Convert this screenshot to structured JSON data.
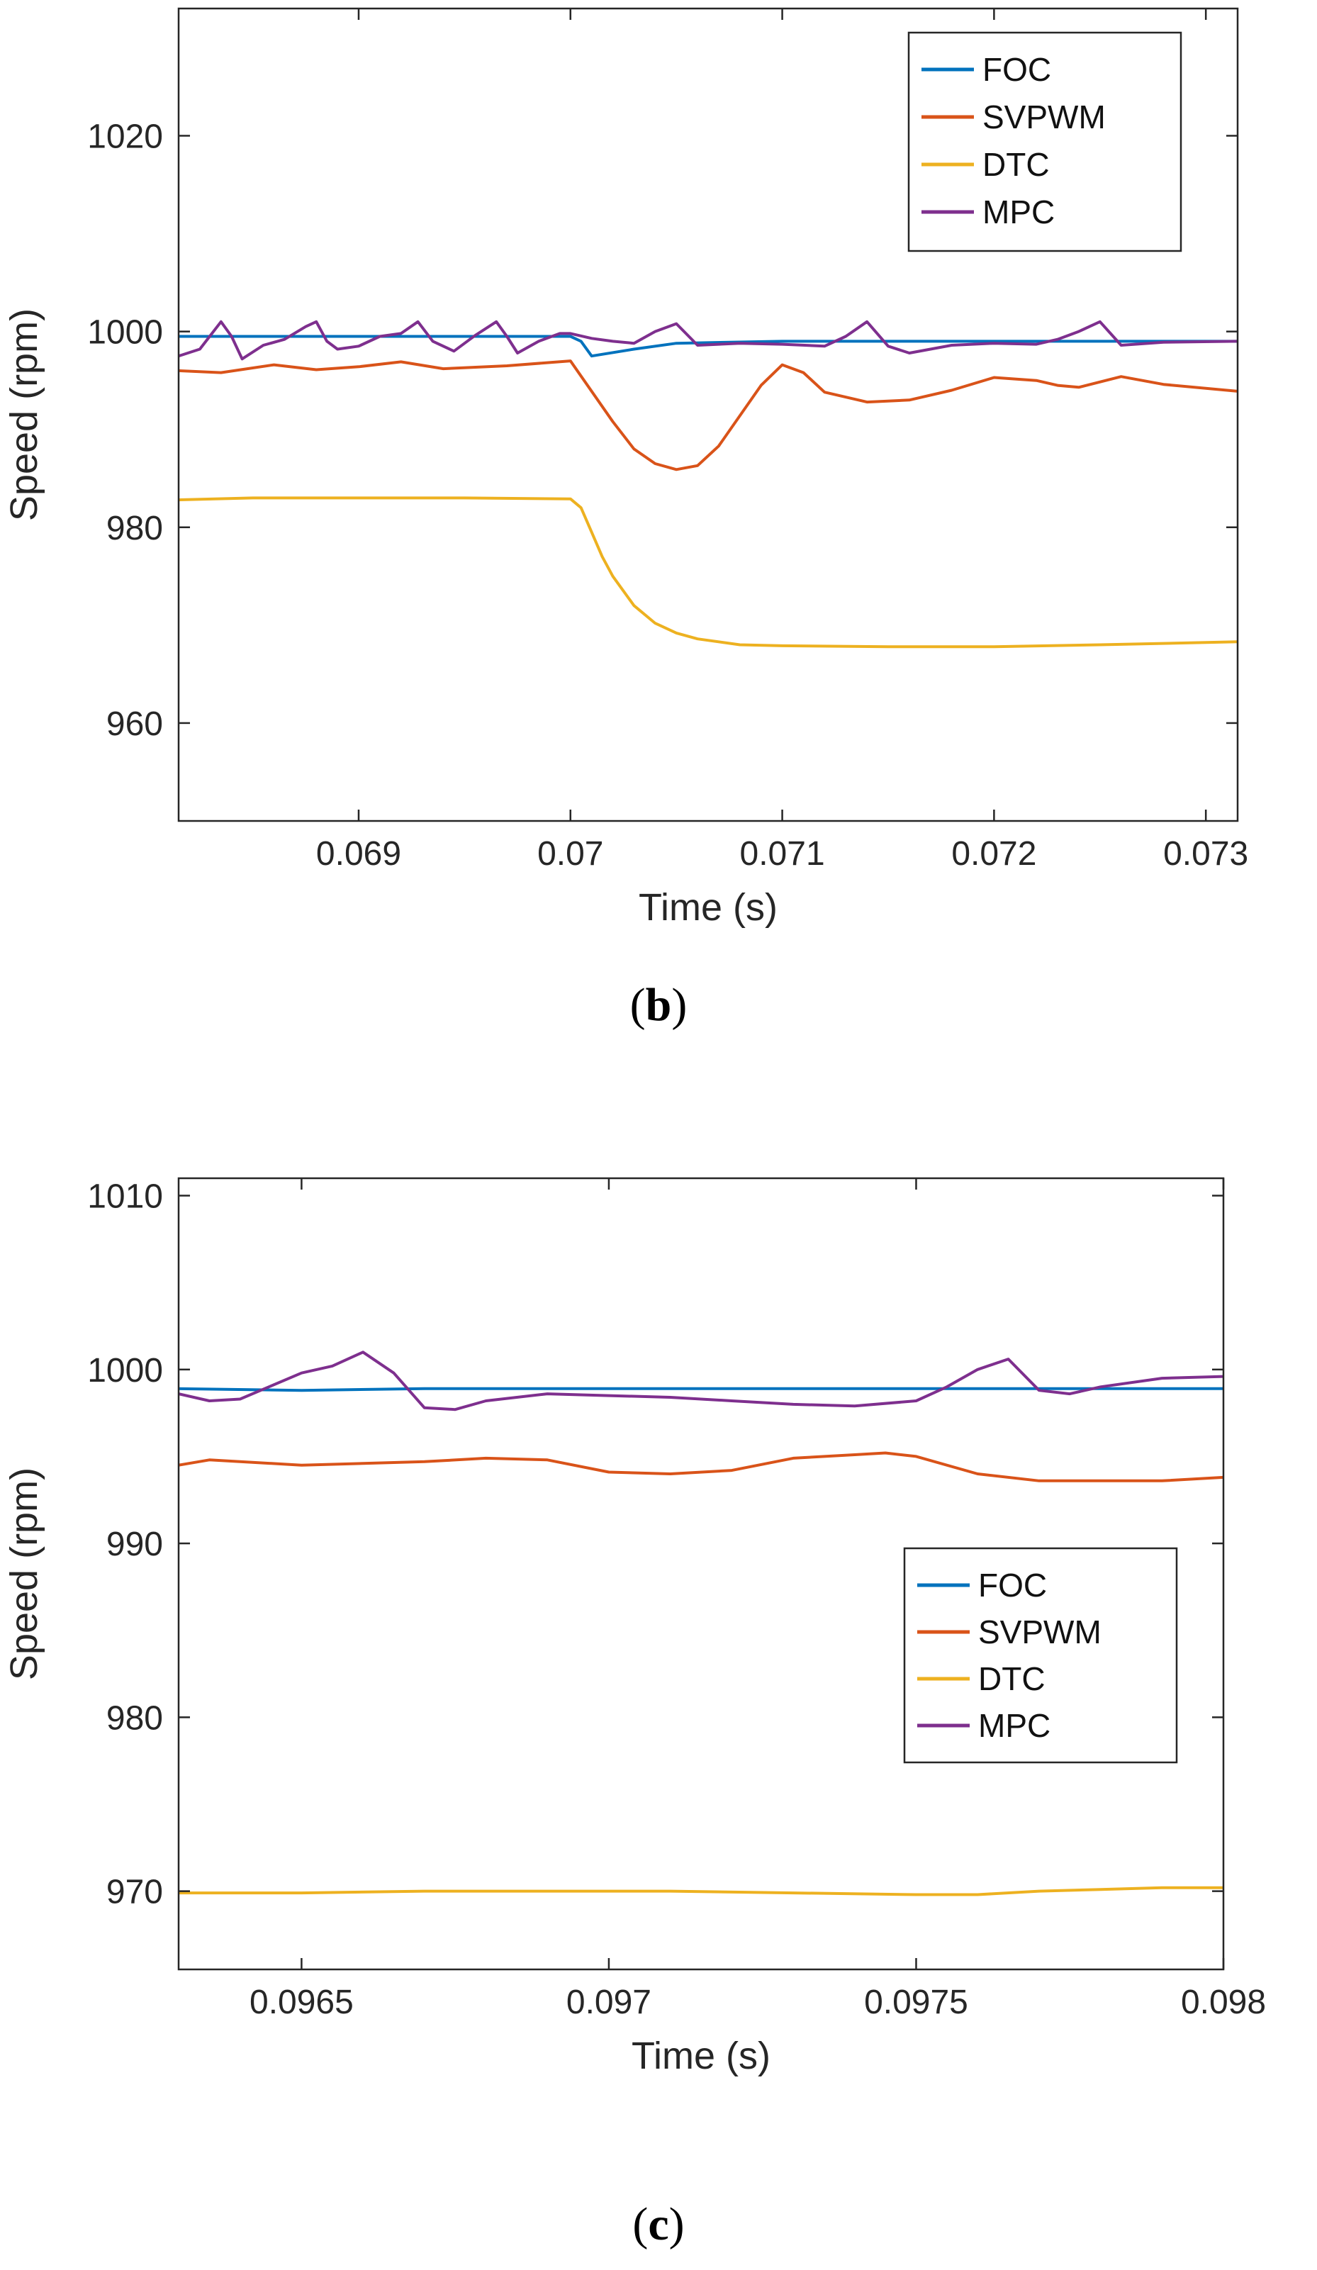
{
  "chart_data": [
    {
      "type": "line",
      "caption": "b",
      "xlabel": "Time (s)",
      "ylabel": "Speed (rpm)",
      "xlim": [
        0.06815,
        0.07315
      ],
      "ylim": [
        950,
        1033
      ],
      "xticks": [
        0.069,
        0.07,
        0.071,
        0.072,
        0.073
      ],
      "xtick_labels": [
        "0.069",
        "0.07",
        "0.071",
        "0.072",
        "0.073"
      ],
      "yticks": [
        960,
        980,
        1000,
        1020
      ],
      "ytick_labels": [
        "960",
        "980",
        "1000",
        "1020"
      ],
      "legend_position": "top-right",
      "series": [
        {
          "name": "FOC",
          "color": "#0072BD",
          "x": [
            0.06815,
            0.0685,
            0.069,
            0.0695,
            0.06995,
            0.07,
            0.07005,
            0.0701,
            0.0703,
            0.0705,
            0.071,
            0.0715,
            0.072,
            0.0725,
            0.07315
          ],
          "y": [
            999.5,
            999.5,
            999.5,
            999.5,
            999.5,
            999.5,
            999.0,
            997.5,
            998.2,
            998.8,
            999.0,
            999.0,
            999.0,
            999.0,
            999.0
          ]
        },
        {
          "name": "SVPWM",
          "color": "#D95319",
          "x": [
            0.06815,
            0.06835,
            0.0686,
            0.0688,
            0.069,
            0.0692,
            0.0694,
            0.0697,
            0.07,
            0.0702,
            0.0703,
            0.0704,
            0.0705,
            0.0706,
            0.0707,
            0.0709,
            0.071,
            0.0711,
            0.0712,
            0.0714,
            0.0716,
            0.0718,
            0.072,
            0.0722,
            0.0723,
            0.0724,
            0.0726,
            0.0728,
            0.07315
          ],
          "y": [
            996.0,
            995.8,
            996.6,
            996.1,
            996.4,
            996.9,
            996.2,
            996.5,
            997.0,
            990.8,
            988.0,
            986.5,
            985.9,
            986.3,
            988.3,
            994.5,
            996.6,
            995.8,
            993.8,
            992.8,
            993.0,
            994.0,
            995.3,
            995.0,
            994.5,
            994.3,
            995.4,
            994.6,
            993.9
          ]
        },
        {
          "name": "DTC",
          "color": "#EDB120",
          "x": [
            0.06815,
            0.0685,
            0.069,
            0.0695,
            0.07,
            0.07005,
            0.0701,
            0.07015,
            0.0702,
            0.0703,
            0.0704,
            0.0705,
            0.0706,
            0.0708,
            0.071,
            0.0715,
            0.072,
            0.0725,
            0.07315
          ],
          "y": [
            982.8,
            983.0,
            983.0,
            983.0,
            982.9,
            982.0,
            979.5,
            977.0,
            975.0,
            972.0,
            970.2,
            969.2,
            968.6,
            968.0,
            967.9,
            967.8,
            967.8,
            968.0,
            968.3
          ]
        },
        {
          "name": "MPC",
          "color": "#7E2F8E",
          "x": [
            0.06815,
            0.06825,
            0.06835,
            0.0684,
            0.06845,
            0.06855,
            0.06865,
            0.06875,
            0.0688,
            0.06885,
            0.0689,
            0.069,
            0.0691,
            0.0692,
            0.06928,
            0.06935,
            0.06945,
            0.06955,
            0.06965,
            0.0697,
            0.06975,
            0.06985,
            0.06995,
            0.07,
            0.0701,
            0.0702,
            0.0703,
            0.0704,
            0.0705,
            0.0706,
            0.0708,
            0.071,
            0.0712,
            0.0713,
            0.0714,
            0.0715,
            0.0716,
            0.0718,
            0.072,
            0.0722,
            0.0723,
            0.0724,
            0.0725,
            0.0726,
            0.0728,
            0.07315
          ],
          "y": [
            997.5,
            998.2,
            1001.0,
            999.5,
            997.2,
            998.6,
            999.2,
            1000.5,
            1001.0,
            999.0,
            998.2,
            998.5,
            999.5,
            999.8,
            1001.0,
            999.0,
            998.0,
            999.6,
            1001.0,
            999.5,
            997.8,
            999.0,
            999.8,
            999.8,
            999.3,
            999.0,
            998.8,
            1000.0,
            1000.8,
            998.6,
            998.8,
            998.7,
            998.5,
            999.5,
            1001.0,
            998.5,
            997.8,
            998.6,
            998.8,
            998.7,
            999.2,
            1000.0,
            1001.0,
            998.6,
            998.9,
            999.0
          ]
        }
      ]
    },
    {
      "type": "line",
      "caption": "c",
      "xlabel": "Time (s)",
      "ylabel": "Speed (rpm)",
      "xlim": [
        0.0963,
        0.098
      ],
      "ylim": [
        965.5,
        1011
      ],
      "xticks": [
        0.0965,
        0.097,
        0.0975,
        0.098
      ],
      "xtick_labels": [
        "0.0965",
        "0.097",
        "0.0975",
        "0.098"
      ],
      "yticks": [
        970,
        980,
        990,
        1000,
        1010
      ],
      "ytick_labels": [
        "970",
        "980",
        "990",
        "1000",
        "1010"
      ],
      "legend_position": "middle-right",
      "series": [
        {
          "name": "FOC",
          "color": "#0072BD",
          "x": [
            0.0963,
            0.0965,
            0.0967,
            0.0969,
            0.0971,
            0.0973,
            0.0975,
            0.0977,
            0.0979,
            0.098
          ],
          "y": [
            998.9,
            998.8,
            998.9,
            998.9,
            998.9,
            998.9,
            998.9,
            998.9,
            998.9,
            998.9
          ]
        },
        {
          "name": "SVPWM",
          "color": "#D95319",
          "x": [
            0.0963,
            0.09635,
            0.0965,
            0.0966,
            0.0967,
            0.0968,
            0.0969,
            0.097,
            0.0971,
            0.0972,
            0.0973,
            0.0974,
            0.09745,
            0.0975,
            0.0976,
            0.0977,
            0.0978,
            0.0979,
            0.098
          ],
          "y": [
            994.5,
            994.8,
            994.5,
            994.6,
            994.7,
            994.9,
            994.8,
            994.1,
            994.0,
            994.2,
            994.9,
            995.1,
            995.2,
            995.0,
            994.0,
            993.6,
            993.6,
            993.6,
            993.8
          ]
        },
        {
          "name": "DTC",
          "color": "#EDB120",
          "x": [
            0.0963,
            0.0965,
            0.0967,
            0.0969,
            0.0971,
            0.0973,
            0.0975,
            0.0976,
            0.0977,
            0.0978,
            0.0979,
            0.098
          ],
          "y": [
            969.9,
            969.9,
            970.0,
            970.0,
            970.0,
            969.9,
            969.8,
            969.8,
            970.0,
            970.1,
            970.2,
            970.2
          ]
        },
        {
          "name": "MPC",
          "color": "#7E2F8E",
          "x": [
            0.0963,
            0.09635,
            0.0964,
            0.0965,
            0.09655,
            0.0966,
            0.09665,
            0.0967,
            0.09675,
            0.0968,
            0.0969,
            0.097,
            0.0971,
            0.0972,
            0.0973,
            0.0974,
            0.0975,
            0.09755,
            0.0976,
            0.09765,
            0.0977,
            0.09775,
            0.0978,
            0.0979,
            0.098
          ],
          "y": [
            998.6,
            998.2,
            998.3,
            999.8,
            1000.2,
            1001.0,
            999.8,
            997.8,
            997.7,
            998.2,
            998.6,
            998.5,
            998.4,
            998.2,
            998.0,
            997.9,
            998.2,
            999.0,
            1000.0,
            1000.6,
            998.8,
            998.6,
            999.0,
            999.5,
            999.6
          ]
        }
      ]
    }
  ]
}
